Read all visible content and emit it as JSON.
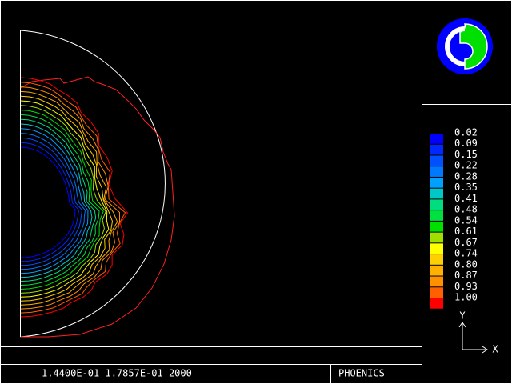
{
  "legend": {
    "entries": [
      {
        "label": "0.02",
        "color": "#0000ff"
      },
      {
        "label": "0.09",
        "color": "#0028ff"
      },
      {
        "label": "0.15",
        "color": "#0050ff"
      },
      {
        "label": "0.22",
        "color": "#0078ff"
      },
      {
        "label": "0.28",
        "color": "#00a0ff"
      },
      {
        "label": "0.35",
        "color": "#00c8c8"
      },
      {
        "label": "0.41",
        "color": "#00dc80"
      },
      {
        "label": "0.48",
        "color": "#00e040"
      },
      {
        "label": "0.54",
        "color": "#00e000"
      },
      {
        "label": "0.61",
        "color": "#a0e000"
      },
      {
        "label": "0.67",
        "color": "#ffff00"
      },
      {
        "label": "0.74",
        "color": "#ffd000"
      },
      {
        "label": "0.80",
        "color": "#ffb000"
      },
      {
        "label": "0.87",
        "color": "#ff9000"
      },
      {
        "label": "0.93",
        "color": "#ff6000"
      },
      {
        "label": "1.00",
        "color": "#ff0000"
      }
    ]
  },
  "axes": {
    "y_label": "Y",
    "x_label": "X"
  },
  "status": {
    "text": "1.4400E-01 1.7857E-01 2000",
    "program": "PHOENICS"
  }
}
